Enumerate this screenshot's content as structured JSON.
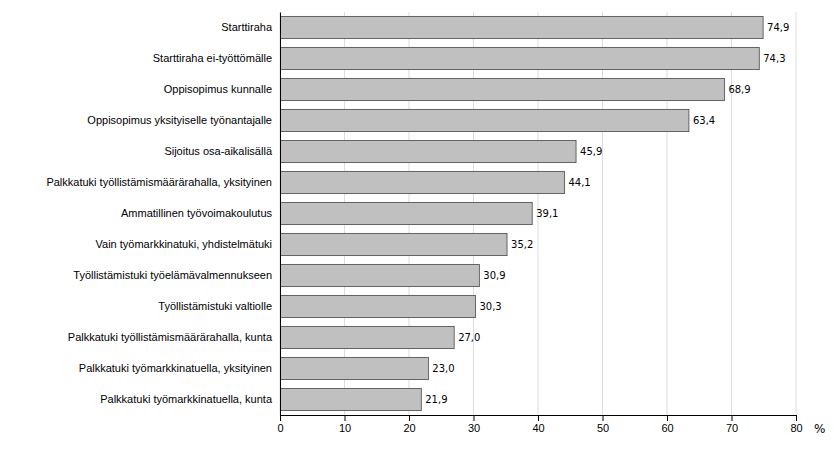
{
  "chart_data": {
    "type": "bar",
    "orientation": "horizontal",
    "categories": [
      "Starttiraha",
      "Starttiraha ei-työttömälle",
      "Oppisopimus kunnalle",
      "Oppisopimus yksityiselle työnantajalle",
      "Sijoitus osa-aikalisällä",
      "Palkkatuki työllistämismäärärahalla, yksityinen",
      "Ammatillinen työvoimakoulutus",
      "Vain työmarkkinatuki, yhdistelmätuki",
      "Työllistämistuki työelämävalmennukseen",
      "Työllistämistuki valtiolle",
      "Palkkatuki työllistämismäärärahalla, kunta",
      "Palkkatuki työmarkkinatuella, yksityinen",
      "Palkkatuki työmarkkinatuella, kunta"
    ],
    "values": [
      74.9,
      74.3,
      68.9,
      63.4,
      45.9,
      44.1,
      39.1,
      35.2,
      30.9,
      30.3,
      27.0,
      23.0,
      21.9
    ],
    "value_labels": [
      "74,9",
      "74,3",
      "68,9",
      "63,4",
      "45,9",
      "44,1",
      "39,1",
      "35,2",
      "30,9",
      "30,3",
      "27,0",
      "23,0",
      "21,9"
    ],
    "data_labels": true,
    "color": "#c0c0c0",
    "xlabel": "%",
    "xlim": [
      0,
      80
    ],
    "xticks": [
      0,
      10,
      20,
      30,
      40,
      50,
      60,
      70,
      80
    ],
    "grid": true
  }
}
